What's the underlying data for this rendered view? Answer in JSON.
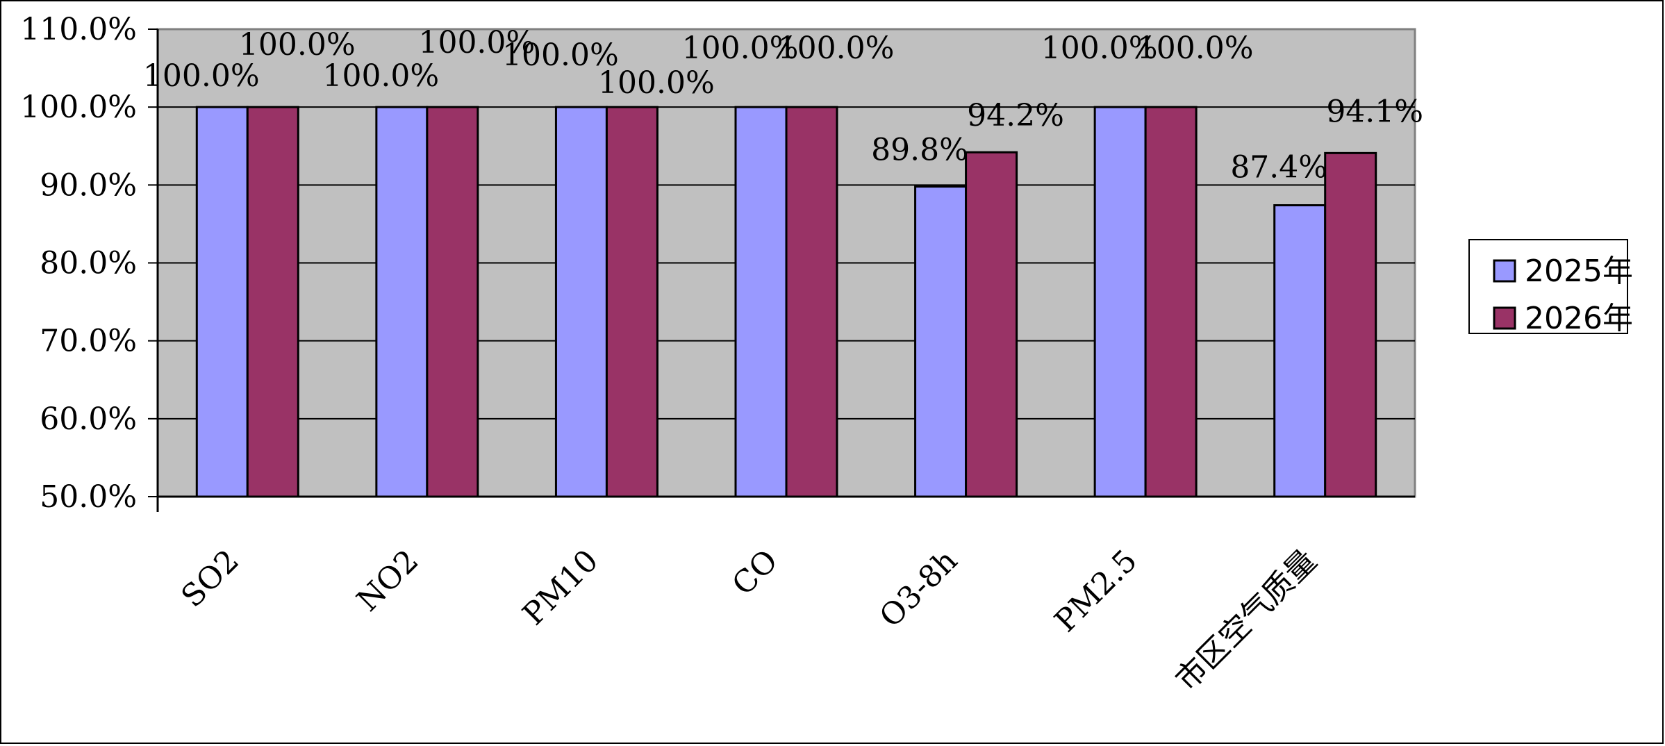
{
  "chart_data": {
    "type": "bar",
    "categories": [
      "SO2",
      "NO2",
      "PM10",
      "CO",
      "O3-8h",
      "PM2.5",
      "市区空气质量"
    ],
    "series": [
      {
        "name": "2025年",
        "values": [
          100.0,
          100.0,
          100.0,
          100.0,
          89.8,
          100.0,
          87.4
        ],
        "labels": [
          "100.0%",
          "100.0%",
          "100.0%",
          "100.0%",
          "89.8%",
          "100.0%",
          "87.4%"
        ]
      },
      {
        "name": "2026年",
        "values": [
          100.0,
          100.0,
          100.0,
          100.0,
          94.2,
          100.0,
          94.1
        ],
        "labels": [
          "100.0%",
          "100.0%",
          "100.0%",
          "100.0%",
          "94.2%",
          "100.0%",
          "94.1%"
        ]
      }
    ],
    "y_ticks": [
      "50.0%",
      "60.0%",
      "70.0%",
      "80.0%",
      "90.0%",
      "100.0%",
      "110.0%"
    ],
    "ylim": [
      50,
      110
    ],
    "grid": true,
    "legend_position": "right",
    "colors": {
      "plot_background": "#c0c0c0",
      "series": [
        "#9999ff",
        "#993366"
      ],
      "grid": "#000000"
    }
  }
}
